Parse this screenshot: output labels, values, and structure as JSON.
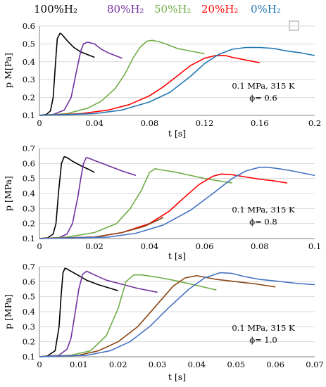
{
  "legend": [
    {
      "label": "100%H₂",
      "color": "#000000"
    },
    {
      "label": "80%H₂",
      "color": "#7030a0"
    },
    {
      "label": "50%H₂",
      "color": "#70ad47"
    },
    {
      "label": "20%H₂",
      "color": "#ff0000"
    },
    {
      "label": "0%H₂",
      "color": "#1f77b4"
    }
  ],
  "chart_data": [
    {
      "type": "line",
      "xlabel": "t [s]",
      "ylabel": "p M[Pa]",
      "xlim": [
        0,
        0.2
      ],
      "ylim": [
        0.1,
        0.6
      ],
      "xticks": [
        "0",
        "0.04",
        "0.08",
        "0.12",
        "0.16",
        "0.2"
      ],
      "yticks": [
        "0.1",
        "0.2",
        "0.3",
        "0.4",
        "0.5",
        "0.6"
      ],
      "grid": "horizontal",
      "annotation": [
        "0.1 MPa, 315 K",
        "ϕ= 0.6"
      ],
      "series": [
        {
          "name": "100%H₂",
          "color": "#000000",
          "points": [
            [
              0,
              0.1
            ],
            [
              0.005,
              0.105
            ],
            [
              0.008,
              0.125
            ],
            [
              0.01,
              0.2
            ],
            [
              0.012,
              0.43
            ],
            [
              0.013,
              0.53
            ],
            [
              0.015,
              0.56
            ],
            [
              0.016,
              0.555
            ],
            [
              0.02,
              0.52
            ],
            [
              0.025,
              0.48
            ],
            [
              0.03,
              0.455
            ],
            [
              0.035,
              0.44
            ],
            [
              0.04,
              0.425
            ]
          ]
        },
        {
          "name": "80%H₂",
          "color": "#7030a0",
          "points": [
            [
              0,
              0.1
            ],
            [
              0.01,
              0.105
            ],
            [
              0.018,
              0.13
            ],
            [
              0.023,
              0.2
            ],
            [
              0.027,
              0.35
            ],
            [
              0.03,
              0.46
            ],
            [
              0.032,
              0.5
            ],
            [
              0.035,
              0.51
            ],
            [
              0.04,
              0.5
            ],
            [
              0.045,
              0.47
            ],
            [
              0.05,
              0.45
            ],
            [
              0.055,
              0.435
            ],
            [
              0.06,
              0.42
            ]
          ]
        },
        {
          "name": "50%H₂",
          "color": "#70ad47",
          "points": [
            [
              0,
              0.1
            ],
            [
              0.02,
              0.11
            ],
            [
              0.035,
              0.14
            ],
            [
              0.045,
              0.18
            ],
            [
              0.055,
              0.25
            ],
            [
              0.062,
              0.33
            ],
            [
              0.068,
              0.42
            ],
            [
              0.073,
              0.48
            ],
            [
              0.078,
              0.515
            ],
            [
              0.082,
              0.52
            ],
            [
              0.088,
              0.51
            ],
            [
              0.095,
              0.49
            ],
            [
              0.1,
              0.475
            ],
            [
              0.11,
              0.46
            ],
            [
              0.12,
              0.445
            ]
          ]
        },
        {
          "name": "20%H₂",
          "color": "#ff0000",
          "points": [
            [
              0,
              0.1
            ],
            [
              0.03,
              0.11
            ],
            [
              0.05,
              0.13
            ],
            [
              0.065,
              0.16
            ],
            [
              0.08,
              0.21
            ],
            [
              0.09,
              0.26
            ],
            [
              0.1,
              0.32
            ],
            [
              0.11,
              0.38
            ],
            [
              0.12,
              0.42
            ],
            [
              0.128,
              0.435
            ],
            [
              0.135,
              0.435
            ],
            [
              0.14,
              0.425
            ],
            [
              0.15,
              0.41
            ],
            [
              0.16,
              0.395
            ]
          ]
        },
        {
          "name": "0%H₂",
          "color": "#1f77b4",
          "points": [
            [
              0,
              0.1
            ],
            [
              0.04,
              0.11
            ],
            [
              0.06,
              0.13
            ],
            [
              0.08,
              0.175
            ],
            [
              0.095,
              0.23
            ],
            [
              0.11,
              0.32
            ],
            [
              0.12,
              0.39
            ],
            [
              0.13,
              0.44
            ],
            [
              0.14,
              0.47
            ],
            [
              0.15,
              0.48
            ],
            [
              0.16,
              0.48
            ],
            [
              0.17,
              0.475
            ],
            [
              0.18,
              0.46
            ],
            [
              0.19,
              0.45
            ],
            [
              0.2,
              0.435
            ]
          ]
        }
      ]
    },
    {
      "type": "line",
      "xlabel": "t [s]",
      "ylabel": "p [MPa]",
      "xlim": [
        0,
        0.1
      ],
      "ylim": [
        0.1,
        0.7
      ],
      "xticks": [
        "0",
        "0.02",
        "0.04",
        "0.06",
        "0.08",
        "0.1"
      ],
      "yticks": [
        "0.1",
        "0.2",
        "0.3",
        "0.4",
        "0.5",
        "0.6",
        "0.7"
      ],
      "grid": "horizontal",
      "annotation": [
        "0.1 MPa, 315 K",
        "ϕ= 0.8"
      ],
      "series": [
        {
          "name": "100%H₂",
          "color": "#000000",
          "points": [
            [
              0,
              0.1
            ],
            [
              0.003,
              0.105
            ],
            [
              0.005,
              0.13
            ],
            [
              0.006,
              0.2
            ],
            [
              0.007,
              0.42
            ],
            [
              0.008,
              0.6
            ],
            [
              0.009,
              0.645
            ],
            [
              0.01,
              0.64
            ],
            [
              0.012,
              0.615
            ],
            [
              0.015,
              0.585
            ],
            [
              0.018,
              0.56
            ],
            [
              0.02,
              0.54
            ]
          ]
        },
        {
          "name": "80%H₂",
          "color": "#7030a0",
          "points": [
            [
              0,
              0.1
            ],
            [
              0.007,
              0.105
            ],
            [
              0.01,
              0.13
            ],
            [
              0.012,
              0.2
            ],
            [
              0.014,
              0.38
            ],
            [
              0.015,
              0.5
            ],
            [
              0.016,
              0.6
            ],
            [
              0.017,
              0.64
            ],
            [
              0.018,
              0.635
            ],
            [
              0.02,
              0.62
            ],
            [
              0.025,
              0.585
            ],
            [
              0.03,
              0.55
            ],
            [
              0.035,
              0.52
            ]
          ]
        },
        {
          "name": "50%H₂",
          "color": "#70ad47",
          "points": [
            [
              0,
              0.1
            ],
            [
              0.01,
              0.11
            ],
            [
              0.02,
              0.14
            ],
            [
              0.028,
              0.2
            ],
            [
              0.033,
              0.3
            ],
            [
              0.037,
              0.42
            ],
            [
              0.04,
              0.54
            ],
            [
              0.042,
              0.565
            ],
            [
              0.045,
              0.555
            ],
            [
              0.05,
              0.54
            ],
            [
              0.055,
              0.52
            ],
            [
              0.06,
              0.5
            ],
            [
              0.065,
              0.485
            ],
            [
              0.07,
              0.47
            ]
          ]
        },
        {
          "name": "20%H₂",
          "color": "#ff0000",
          "points": [
            [
              0,
              0.1
            ],
            [
              0.02,
              0.11
            ],
            [
              0.03,
              0.14
            ],
            [
              0.04,
              0.2
            ],
            [
              0.047,
              0.28
            ],
            [
              0.053,
              0.38
            ],
            [
              0.058,
              0.46
            ],
            [
              0.063,
              0.515
            ],
            [
              0.066,
              0.53
            ],
            [
              0.07,
              0.525
            ],
            [
              0.075,
              0.51
            ],
            [
              0.08,
              0.495
            ],
            [
              0.085,
              0.485
            ],
            [
              0.09,
              0.47
            ]
          ]
        },
        {
          "name": "",
          "color": "#8b4513",
          "points": [
            [
              0,
              0.1
            ],
            [
              0.02,
              0.11
            ],
            [
              0.03,
              0.14
            ],
            [
              0.038,
              0.18
            ],
            [
              0.045,
              0.24
            ]
          ]
        },
        {
          "name": "0%H₂",
          "color": "#4472c4",
          "points": [
            [
              0,
              0.1
            ],
            [
              0.025,
              0.11
            ],
            [
              0.035,
              0.135
            ],
            [
              0.045,
              0.19
            ],
            [
              0.055,
              0.29
            ],
            [
              0.063,
              0.4
            ],
            [
              0.07,
              0.5
            ],
            [
              0.075,
              0.55
            ],
            [
              0.08,
              0.575
            ],
            [
              0.083,
              0.575
            ],
            [
              0.087,
              0.565
            ],
            [
              0.092,
              0.55
            ],
            [
              0.1,
              0.52
            ]
          ]
        }
      ]
    },
    {
      "type": "line",
      "xlabel": "t [s]",
      "ylabel": "p [MPa]",
      "xlim": [
        0,
        0.07
      ],
      "ylim": [
        0.1,
        0.7
      ],
      "xticks": [
        "0",
        "0.01",
        "0.02",
        "0.03",
        "0.04",
        "0.05",
        "0.06",
        "0.07"
      ],
      "yticks": [
        "0.1",
        "0.2",
        "0.3",
        "0.4",
        "0.5",
        "0.6",
        "0.7"
      ],
      "grid": "horizontal",
      "annotation": [
        "0.1 MPa, 315 K",
        "ϕ= 1.0"
      ],
      "series": [
        {
          "name": "100%H₂",
          "color": "#000000",
          "points": [
            [
              0,
              0.1
            ],
            [
              0.002,
              0.105
            ],
            [
              0.004,
              0.14
            ],
            [
              0.005,
              0.3
            ],
            [
              0.0055,
              0.5
            ],
            [
              0.006,
              0.66
            ],
            [
              0.0065,
              0.69
            ],
            [
              0.007,
              0.685
            ],
            [
              0.009,
              0.655
            ],
            [
              0.012,
              0.61
            ],
            [
              0.015,
              0.58
            ],
            [
              0.02,
              0.54
            ]
          ]
        },
        {
          "name": "80%H₂",
          "color": "#7030a0",
          "points": [
            [
              0,
              0.1
            ],
            [
              0.005,
              0.11
            ],
            [
              0.007,
              0.15
            ],
            [
              0.008,
              0.22
            ],
            [
              0.009,
              0.38
            ],
            [
              0.01,
              0.55
            ],
            [
              0.011,
              0.65
            ],
            [
              0.012,
              0.67
            ],
            [
              0.014,
              0.645
            ],
            [
              0.017,
              0.61
            ],
            [
              0.02,
              0.59
            ],
            [
              0.025,
              0.555
            ],
            [
              0.03,
              0.53
            ]
          ]
        },
        {
          "name": "50%H₂",
          "color": "#70ad47",
          "points": [
            [
              0,
              0.1
            ],
            [
              0.008,
              0.11
            ],
            [
              0.013,
              0.14
            ],
            [
              0.017,
              0.24
            ],
            [
              0.02,
              0.42
            ],
            [
              0.022,
              0.6
            ],
            [
              0.024,
              0.645
            ],
            [
              0.026,
              0.645
            ],
            [
              0.03,
              0.63
            ],
            [
              0.035,
              0.605
            ],
            [
              0.04,
              0.575
            ],
            [
              0.045,
              0.545
            ]
          ]
        },
        {
          "name": "20%H₂",
          "color": "#8b4513",
          "points": [
            [
              0,
              0.1
            ],
            [
              0.01,
              0.11
            ],
            [
              0.015,
              0.14
            ],
            [
              0.02,
              0.2
            ],
            [
              0.025,
              0.3
            ],
            [
              0.03,
              0.45
            ],
            [
              0.034,
              0.57
            ],
            [
              0.037,
              0.625
            ],
            [
              0.04,
              0.64
            ],
            [
              0.042,
              0.63
            ],
            [
              0.045,
              0.615
            ],
            [
              0.05,
              0.6
            ],
            [
              0.055,
              0.585
            ],
            [
              0.06,
              0.565
            ]
          ]
        },
        {
          "name": "0%H₂",
          "color": "#4472c4",
          "points": [
            [
              0,
              0.1
            ],
            [
              0.012,
              0.11
            ],
            [
              0.018,
              0.14
            ],
            [
              0.023,
              0.2
            ],
            [
              0.028,
              0.3
            ],
            [
              0.033,
              0.43
            ],
            [
              0.038,
              0.55
            ],
            [
              0.042,
              0.625
            ],
            [
              0.046,
              0.66
            ],
            [
              0.049,
              0.655
            ],
            [
              0.052,
              0.635
            ],
            [
              0.056,
              0.615
            ],
            [
              0.06,
              0.605
            ],
            [
              0.065,
              0.59
            ],
            [
              0.07,
              0.58
            ]
          ]
        }
      ]
    }
  ]
}
